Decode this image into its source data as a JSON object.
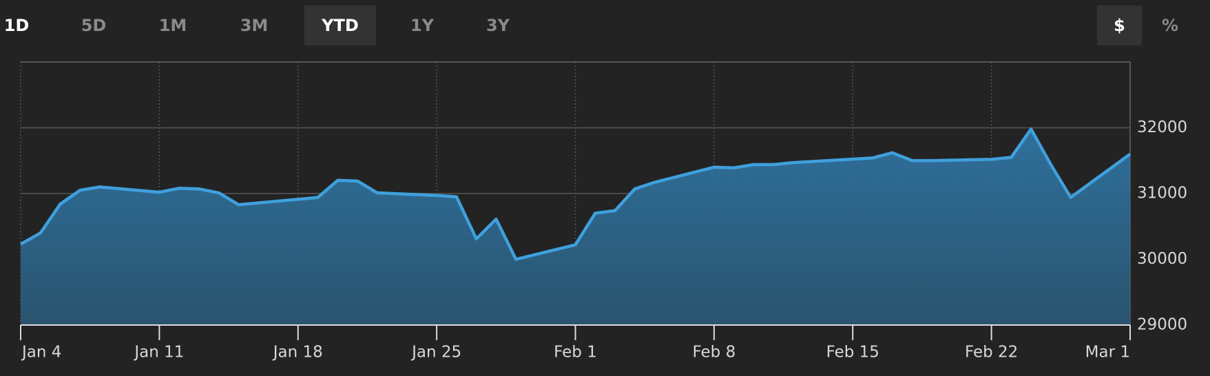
{
  "ui": {
    "ranges": [
      "1D",
      "5D",
      "1M",
      "3M",
      "YTD",
      "1Y",
      "3Y"
    ],
    "units": [
      "$",
      "%"
    ]
  },
  "chart_data": {
    "type": "area",
    "color": "#3fa0dc",
    "grid": true,
    "x": [
      "Jan 4",
      "Jan 5",
      "Jan 6",
      "Jan 7",
      "Jan 8",
      "Jan 11",
      "Jan 12",
      "Jan 13",
      "Jan 14",
      "Jan 15",
      "Jan 19",
      "Jan 20",
      "Jan 21",
      "Jan 22",
      "Jan 25",
      "Jan 26",
      "Jan 27",
      "Jan 28",
      "Jan 29",
      "Feb 1",
      "Feb 2",
      "Feb 3",
      "Feb 4",
      "Feb 5",
      "Feb 8",
      "Feb 9",
      "Feb 10",
      "Feb 11",
      "Feb 12",
      "Feb 16",
      "Feb 17",
      "Feb 18",
      "Feb 19",
      "Feb 22",
      "Feb 23",
      "Feb 24",
      "Feb 25",
      "Feb 26",
      "Mar 1"
    ],
    "values": [
      30230,
      30400,
      30840,
      31050,
      31100,
      31020,
      31080,
      31070,
      31010,
      30830,
      30940,
      31200,
      31190,
      31010,
      30970,
      30950,
      30310,
      30610,
      30000,
      30220,
      30700,
      30740,
      31070,
      31170,
      31400,
      31390,
      31440,
      31440,
      31470,
      31540,
      31620,
      31500,
      31500,
      31520,
      31550,
      31980,
      31440,
      30940,
      31600
    ],
    "xticks": [
      "Jan 4",
      "Jan 11",
      "Jan 18",
      "Jan 25",
      "Feb 1",
      "Feb 8",
      "Feb 15",
      "Feb 22",
      "Mar 1"
    ],
    "ylim": [
      29000,
      33000
    ],
    "yticks": [
      29000,
      30000,
      31000,
      32000
    ]
  }
}
